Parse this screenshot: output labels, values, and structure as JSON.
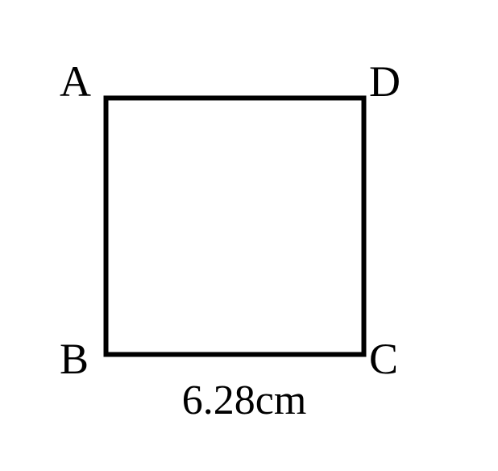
{
  "diagram": {
    "vertices": {
      "a": "A",
      "b": "B",
      "c": "C",
      "d": "D"
    },
    "side_length_label": "6.28cm"
  }
}
